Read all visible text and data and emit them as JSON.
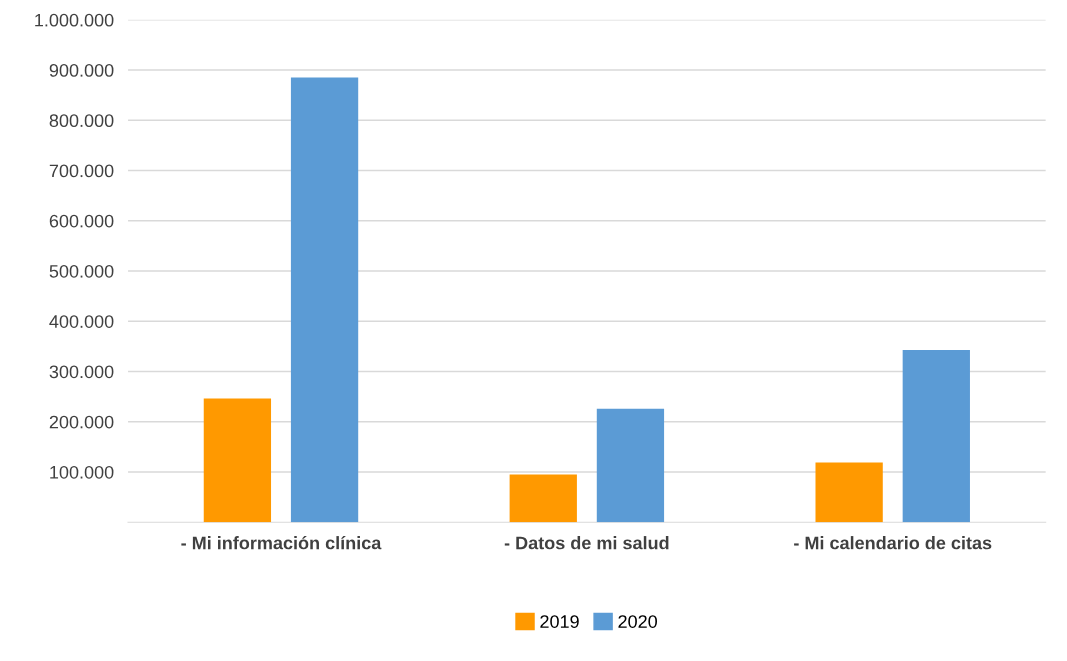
{
  "chart_data": {
    "type": "bar",
    "categories": [
      "- Mi información clínica",
      "- Datos de mi salud",
      "- Mi calendario de citas"
    ],
    "series": [
      {
        "name": "2019",
        "color": "#ff9900",
        "values": [
          246000,
          95000,
          119000
        ]
      },
      {
        "name": "2020",
        "color": "#5b9bd5",
        "values": [
          885000,
          226000,
          343000
        ]
      }
    ],
    "ylim": [
      0,
      1000000
    ],
    "yticks": [
      {
        "value": 100000,
        "label": "100.000"
      },
      {
        "value": 200000,
        "label": "200.000"
      },
      {
        "value": 300000,
        "label": "300.000"
      },
      {
        "value": 400000,
        "label": "400.000"
      },
      {
        "value": 500000,
        "label": "500.000"
      },
      {
        "value": 600000,
        "label": "600.000"
      },
      {
        "value": 700000,
        "label": "700.000"
      },
      {
        "value": 800000,
        "label": "800.000"
      },
      {
        "value": 900000,
        "label": "900.000"
      },
      {
        "value": 1000000,
        "label": "1.000.000"
      }
    ],
    "grid": "y",
    "legend": "bottom"
  }
}
